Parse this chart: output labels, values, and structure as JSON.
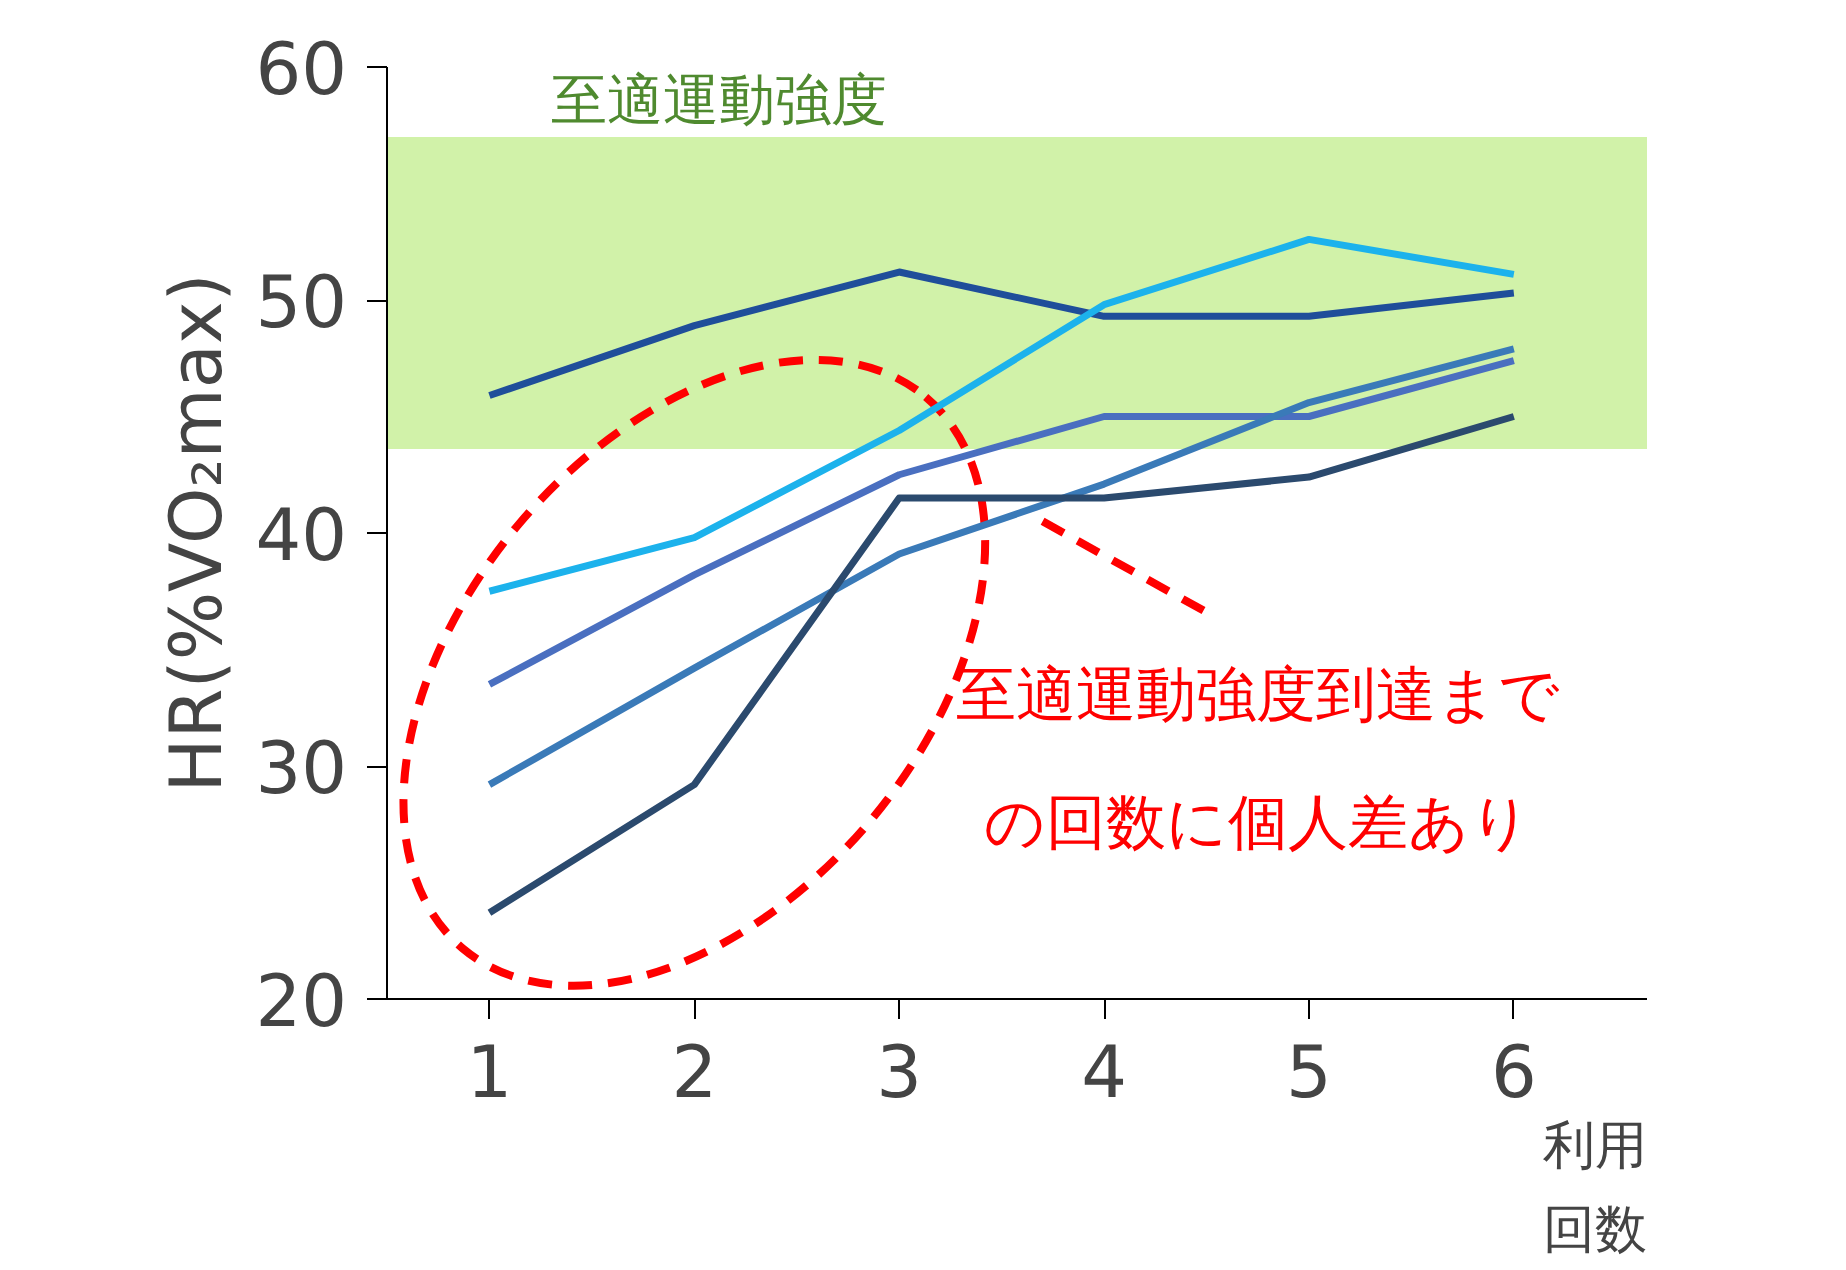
{
  "chart_data": {
    "type": "line",
    "xlabel": "利用回数",
    "ylabel": "HR(%VO₂max)",
    "x": [
      1,
      2,
      3,
      4,
      5,
      6
    ],
    "series": [
      {
        "color": "#1f4e9a",
        "values": [
          45.9,
          48.9,
          51.2,
          49.3,
          49.3,
          50.3
        ]
      },
      {
        "color": "#1cb2ec",
        "values": [
          37.5,
          39.8,
          44.4,
          49.8,
          52.6,
          51.1
        ]
      },
      {
        "color": "#4a6fc0",
        "values": [
          33.5,
          38.2,
          42.5,
          45.0,
          45.0,
          47.4
        ]
      },
      {
        "color": "#3a7ab8",
        "values": [
          29.2,
          34.2,
          39.1,
          42.1,
          45.6,
          47.9
        ]
      },
      {
        "color": "#2b4a6e",
        "values": [
          23.7,
          29.2,
          41.5,
          41.5,
          42.4,
          45.0
        ]
      }
    ],
    "xlim": [
      0.5,
      6.65
    ],
    "ylim": [
      20,
      60
    ],
    "xticks": [
      1,
      2,
      3,
      4,
      5,
      6
    ],
    "yticks": [
      20,
      30,
      40,
      50,
      60
    ],
    "bands": [
      {
        "axis": "y",
        "from": 43.6,
        "to": 57.0,
        "label": "至適運動強度",
        "color": "#c6ef94"
      }
    ],
    "annotations": [
      "至適運動強度到達までの回数に個人差あり"
    ],
    "grid": false,
    "marker": "none",
    "line_style": "solid"
  }
}
